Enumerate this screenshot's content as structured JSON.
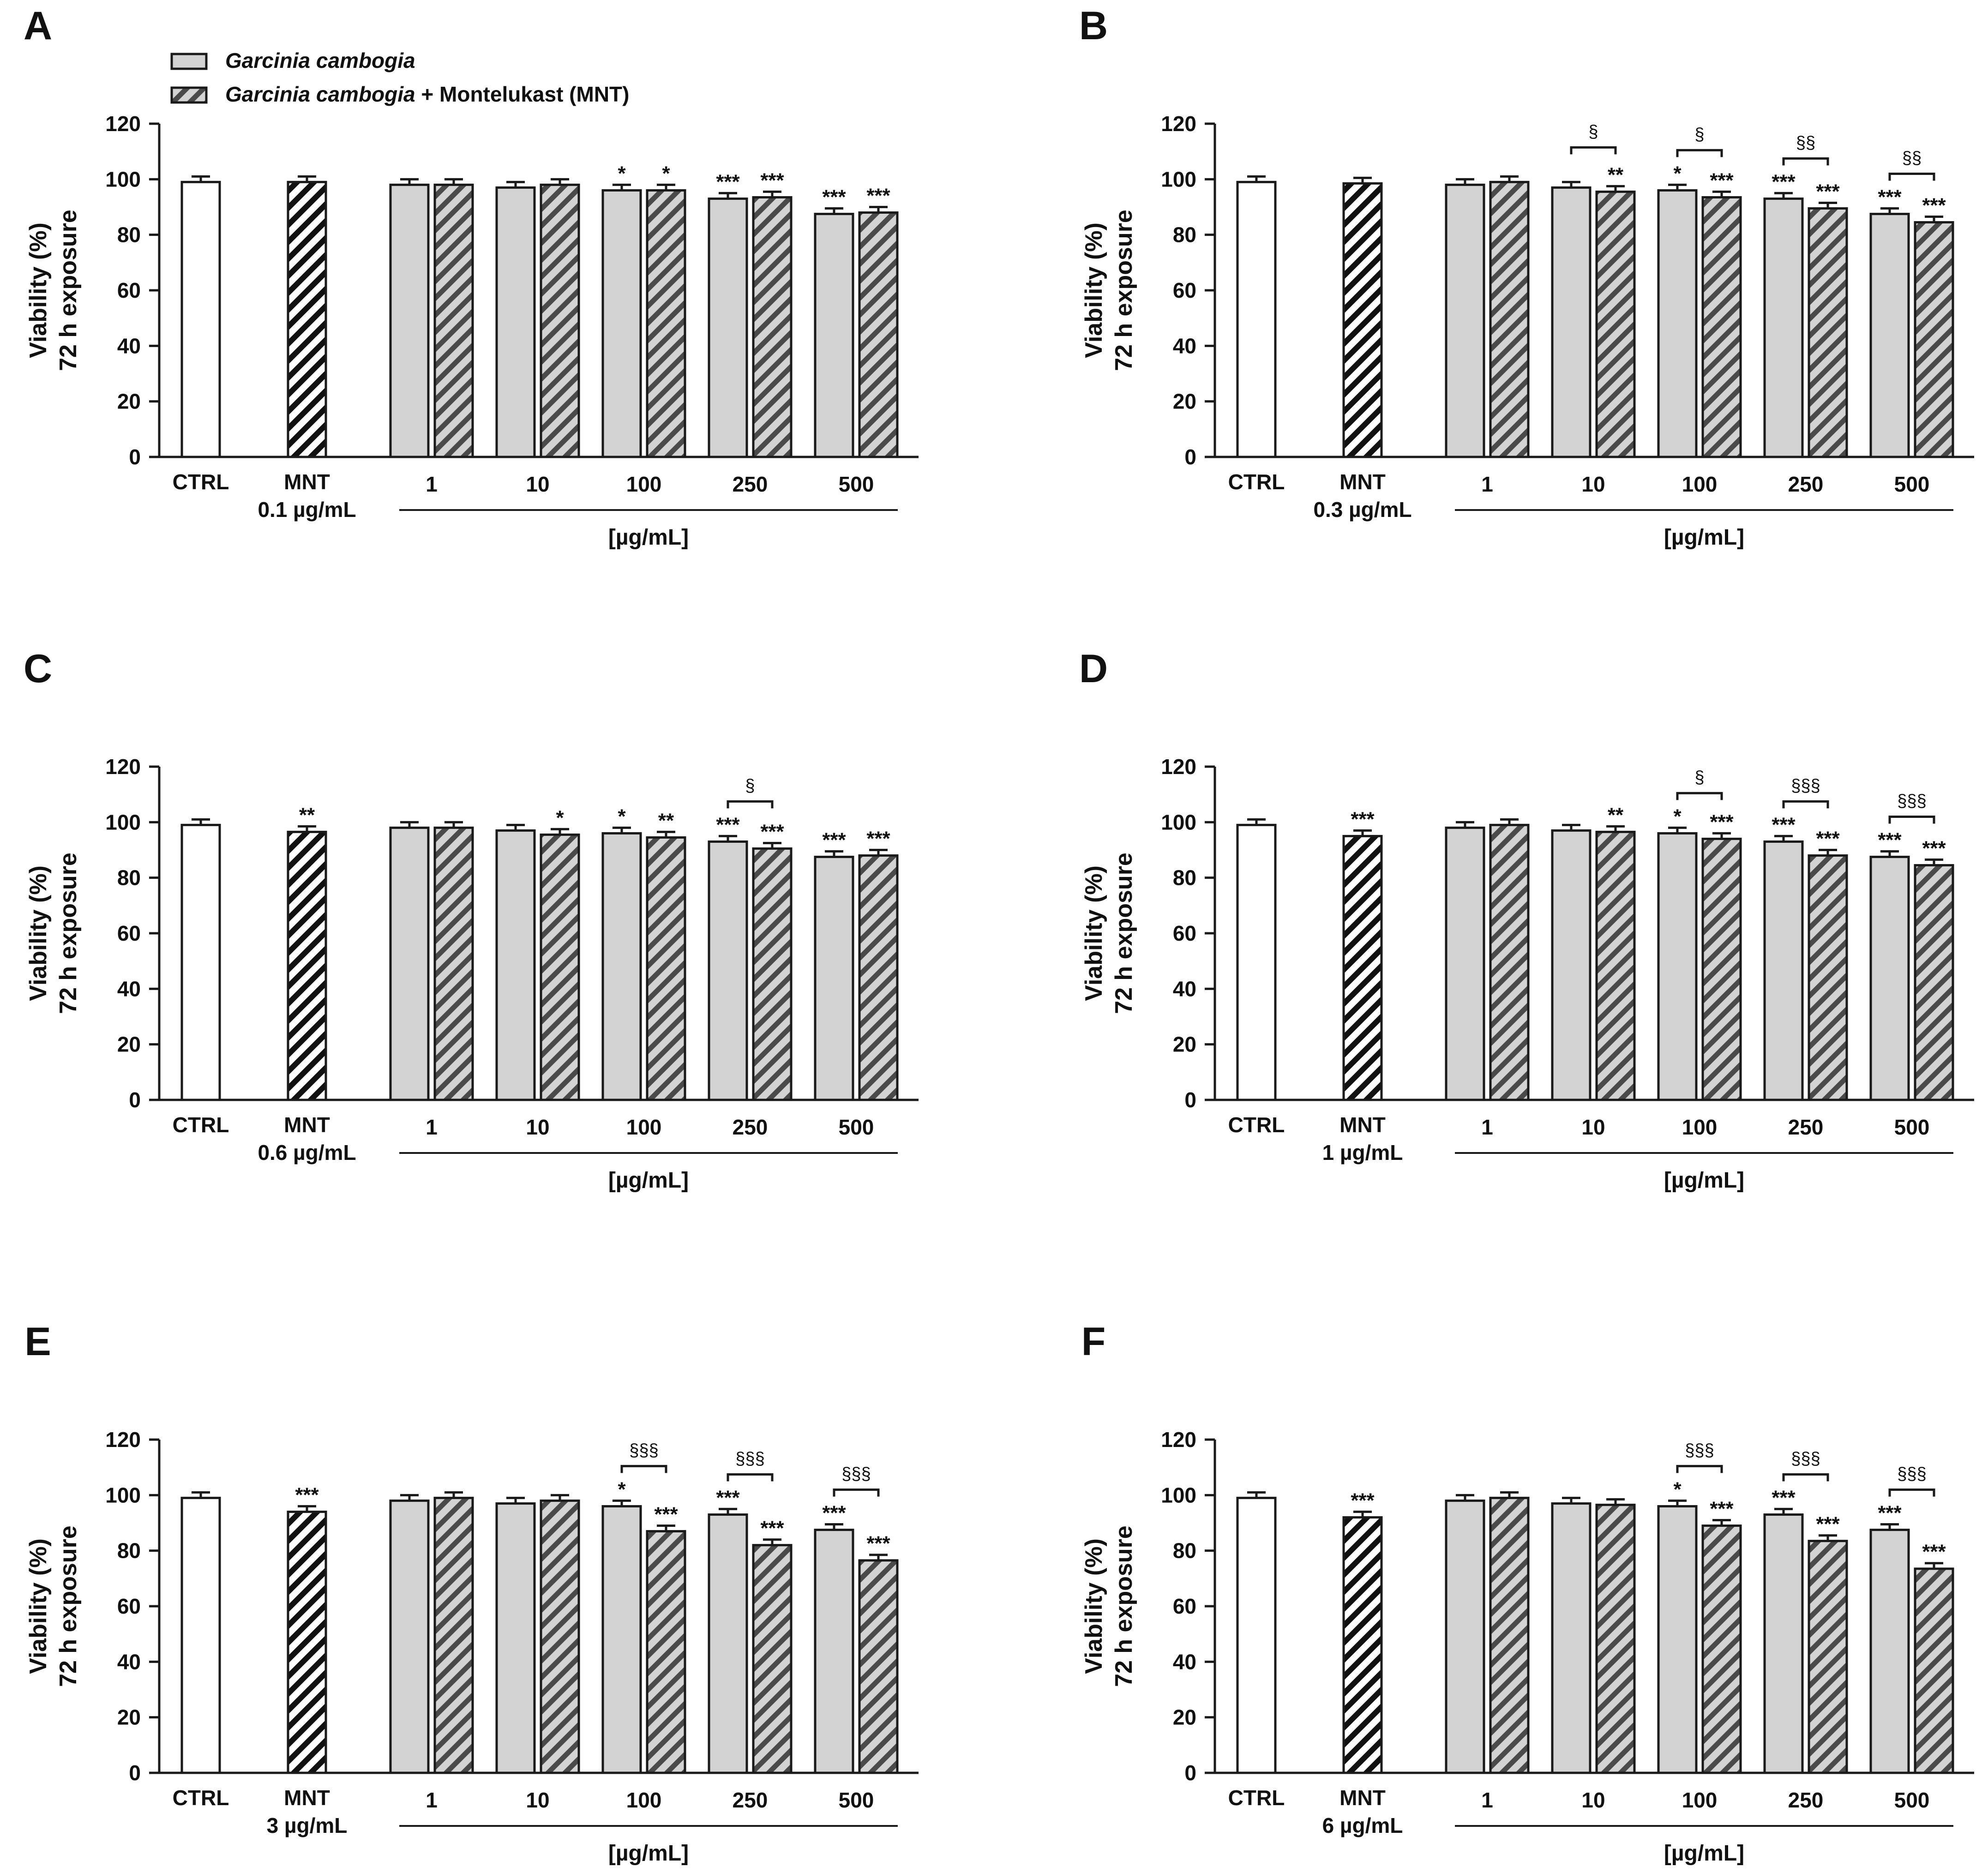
{
  "legend": {
    "gc_label": "Garcinia cambogia",
    "combo_label_italic": "Garcinia cambogia",
    "combo_label_rest": " + Montelukast (MNT)"
  },
  "colors": {
    "gc_fill": "#d3d3d3",
    "stroke": "#1a1a1a",
    "background": "#ffffff"
  },
  "chart_data": [
    {
      "panel": "A",
      "type": "bar",
      "mnt_dose": "0.1 µg/mL",
      "ylabel": "Viability (%)",
      "ylabel2": "72 h exposure",
      "ylim": [
        0,
        120
      ],
      "yticks": [
        0,
        20,
        40,
        60,
        80,
        100,
        120
      ],
      "xlabel": "[µg/mL]",
      "categories": [
        "1",
        "10",
        "100",
        "250",
        "500"
      ],
      "ctrl_label": "CTRL",
      "mnt_label": "MNT",
      "ctrl": 99,
      "mnt": 99,
      "mnt_sig": "",
      "series": [
        {
          "name": "Garcinia cambogia",
          "values": [
            98,
            97,
            96,
            93,
            87.5
          ],
          "sig": [
            "",
            "",
            "*",
            "***",
            "***"
          ]
        },
        {
          "name": "Garcinia cambogia + Montelukast (MNT)",
          "values": [
            98,
            98,
            96,
            93.5,
            88
          ],
          "sig": [
            "",
            "",
            "*",
            "***",
            "***"
          ]
        }
      ],
      "brackets": []
    },
    {
      "panel": "B",
      "type": "bar",
      "mnt_dose": "0.3 µg/mL",
      "ylabel": "Viability (%)",
      "ylabel2": "72 h exposure",
      "ylim": [
        0,
        120
      ],
      "yticks": [
        0,
        20,
        40,
        60,
        80,
        100,
        120
      ],
      "xlabel": "[µg/mL]",
      "categories": [
        "1",
        "10",
        "100",
        "250",
        "500"
      ],
      "ctrl_label": "CTRL",
      "mnt_label": "MNT",
      "ctrl": 99,
      "mnt": 98.5,
      "mnt_sig": "",
      "series": [
        {
          "name": "Garcinia cambogia",
          "values": [
            98,
            97,
            96,
            93,
            87.5
          ],
          "sig": [
            "",
            "",
            "*",
            "***",
            "***"
          ]
        },
        {
          "name": "Garcinia cambogia + Montelukast (MNT)",
          "values": [
            99,
            95.5,
            93.5,
            89.5,
            84.5
          ],
          "sig": [
            "",
            "**",
            "***",
            "***",
            "***"
          ]
        }
      ],
      "brackets": [
        {
          "index": 1,
          "label": "§"
        },
        {
          "index": 2,
          "label": "§"
        },
        {
          "index": 3,
          "label": "§§"
        },
        {
          "index": 4,
          "label": "§§"
        }
      ]
    },
    {
      "panel": "C",
      "type": "bar",
      "mnt_dose": "0.6 µg/mL",
      "ylabel": "Viability (%)",
      "ylabel2": "72 h exposure",
      "ylim": [
        0,
        120
      ],
      "yticks": [
        0,
        20,
        40,
        60,
        80,
        100,
        120
      ],
      "xlabel": "[µg/mL]",
      "categories": [
        "1",
        "10",
        "100",
        "250",
        "500"
      ],
      "ctrl_label": "CTRL",
      "mnt_label": "MNT",
      "ctrl": 99,
      "mnt": 96.5,
      "mnt_sig": "**",
      "series": [
        {
          "name": "Garcinia cambogia",
          "values": [
            98,
            97,
            96,
            93,
            87.5
          ],
          "sig": [
            "",
            "",
            "*",
            "***",
            "***"
          ]
        },
        {
          "name": "Garcinia cambogia + Montelukast (MNT)",
          "values": [
            98,
            95.5,
            94.5,
            90.5,
            88
          ],
          "sig": [
            "",
            "*",
            "**",
            "***",
            "***"
          ]
        }
      ],
      "brackets": [
        {
          "index": 3,
          "label": "§"
        }
      ]
    },
    {
      "panel": "D",
      "type": "bar",
      "mnt_dose": "1 µg/mL",
      "ylabel": "Viability (%)",
      "ylabel2": "72 h exposure",
      "ylim": [
        0,
        120
      ],
      "yticks": [
        0,
        20,
        40,
        60,
        80,
        100,
        120
      ],
      "xlabel": "[µg/mL]",
      "categories": [
        "1",
        "10",
        "100",
        "250",
        "500"
      ],
      "ctrl_label": "CTRL",
      "mnt_label": "MNT",
      "ctrl": 99,
      "mnt": 95,
      "mnt_sig": "***",
      "series": [
        {
          "name": "Garcinia cambogia",
          "values": [
            98,
            97,
            96,
            93,
            87.5
          ],
          "sig": [
            "",
            "",
            "*",
            "***",
            "***"
          ]
        },
        {
          "name": "Garcinia cambogia + Montelukast (MNT)",
          "values": [
            99,
            96.5,
            94,
            88,
            84.5
          ],
          "sig": [
            "",
            "**",
            "***",
            "***",
            "***"
          ]
        }
      ],
      "brackets": [
        {
          "index": 2,
          "label": "§"
        },
        {
          "index": 3,
          "label": "§§§"
        },
        {
          "index": 4,
          "label": "§§§"
        }
      ]
    },
    {
      "panel": "E",
      "type": "bar",
      "mnt_dose": "3 µg/mL",
      "ylabel": "Viability (%)",
      "ylabel2": "72 h exposure",
      "ylim": [
        0,
        120
      ],
      "yticks": [
        0,
        20,
        40,
        60,
        80,
        100,
        120
      ],
      "xlabel": "[µg/mL]",
      "categories": [
        "1",
        "10",
        "100",
        "250",
        "500"
      ],
      "ctrl_label": "CTRL",
      "mnt_label": "MNT",
      "ctrl": 99,
      "mnt": 94,
      "mnt_sig": "***",
      "series": [
        {
          "name": "Garcinia cambogia",
          "values": [
            98,
            97,
            96,
            93,
            87.5
          ],
          "sig": [
            "",
            "",
            "*",
            "***",
            "***"
          ]
        },
        {
          "name": "Garcinia cambogia + Montelukast (MNT)",
          "values": [
            99,
            98,
            87,
            82,
            76.5
          ],
          "sig": [
            "",
            "",
            "***",
            "***",
            "***"
          ]
        }
      ],
      "brackets": [
        {
          "index": 2,
          "label": "§§§"
        },
        {
          "index": 3,
          "label": "§§§"
        },
        {
          "index": 4,
          "label": "§§§"
        }
      ]
    },
    {
      "panel": "F",
      "type": "bar",
      "mnt_dose": "6 µg/mL",
      "ylabel": "Viability (%)",
      "ylabel2": "72 h exposure",
      "ylim": [
        0,
        120
      ],
      "yticks": [
        0,
        20,
        40,
        60,
        80,
        100,
        120
      ],
      "xlabel": "[µg/mL]",
      "categories": [
        "1",
        "10",
        "100",
        "250",
        "500"
      ],
      "ctrl_label": "CTRL",
      "mnt_label": "MNT",
      "ctrl": 99,
      "mnt": 92,
      "mnt_sig": "***",
      "series": [
        {
          "name": "Garcinia cambogia",
          "values": [
            98,
            97,
            96,
            93,
            87.5
          ],
          "sig": [
            "",
            "",
            "*",
            "***",
            "***"
          ]
        },
        {
          "name": "Garcinia cambogia + Montelukast (MNT)",
          "values": [
            99,
            96.5,
            89,
            83.5,
            73.5
          ],
          "sig": [
            "",
            "",
            "***",
            "***",
            "***"
          ]
        }
      ],
      "brackets": [
        {
          "index": 2,
          "label": "§§§"
        },
        {
          "index": 3,
          "label": "§§§"
        },
        {
          "index": 4,
          "label": "§§§"
        }
      ]
    }
  ]
}
